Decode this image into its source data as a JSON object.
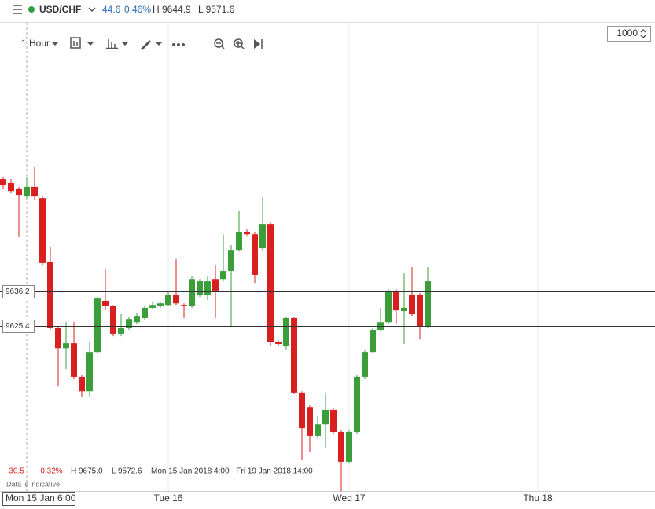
{
  "header": {
    "symbol": "USD/CHF",
    "change": "44.6",
    "change_pct": "0.46%",
    "high": "H 9644.9",
    "low": "L 9571.6"
  },
  "toolbar": {
    "interval": "1 Hour",
    "zoom": "1000"
  },
  "footer": {
    "change": "-30.5",
    "change_pct": "-0.32%",
    "high": "H 9675.0",
    "low": "L 9572.6",
    "range": "Mon 15 Jan 2018 4:00 - Fri 19 Jan 2018 14:00",
    "note": "Data is indicative"
  },
  "chart_data": {
    "type": "candlestick",
    "categories": [
      null,
      null,
      null,
      "Mon 15 Jan 6:00",
      null,
      null,
      null,
      null,
      null,
      null,
      null,
      null,
      null,
      null,
      null,
      null,
      null,
      null,
      null,
      null,
      null,
      "Tue 16",
      null,
      null,
      null,
      null,
      null,
      null,
      null,
      null,
      null,
      null,
      null,
      null,
      null,
      null,
      null,
      null,
      null,
      null,
      null,
      null,
      null,
      null,
      "Wed 17",
      null,
      null,
      null,
      null,
      null,
      null,
      null,
      null,
      null,
      null,
      null,
      null,
      null,
      null,
      null,
      null,
      null,
      null,
      null,
      null,
      null,
      null,
      null,
      "Thu 18",
      null
    ],
    "open": [
      9671.3,
      9670.1,
      9668.4,
      9665.9,
      9668.9,
      9665.4,
      9645.5,
      9624.7,
      9618.5,
      9620.0,
      9609.5,
      9605.0,
      9617.3,
      9633.3,
      9631.6,
      9623.0,
      9624.7,
      9626.6,
      9627.9,
      9631.1,
      9631.6,
      9632.0,
      9635.0,
      9632.0,
      9631.6,
      9635.2,
      9635.0,
      9640.1,
      9640.1,
      9642.6,
      9649.2,
      9654.9,
      9654.1,
      9649.7,
      9657.3,
      9620.5,
      9619.3,
      9627.9,
      9604.6,
      9600.1,
      9591.1,
      9594.7,
      9599.2,
      9592.3,
      9583.0,
      9592.3,
      9609.5,
      9617.3,
      9624.2,
      9626.6,
      9636.5,
      9630.1,
      9635.2,
      9635.2,
      9625.4,
      null,
      null,
      null,
      null,
      null,
      null,
      null,
      null,
      null,
      null,
      null,
      null,
      null,
      null,
      null
    ],
    "high": [
      9672.1,
      9671.3,
      9668.9,
      9672.1,
      9675.0,
      9665.9,
      9650.0,
      9625.4,
      9626.6,
      9626.6,
      9610.0,
      9620.5,
      9634.5,
      9643.1,
      9632.0,
      9629.1,
      9628.4,
      9629.6,
      9631.6,
      9632.8,
      9633.0,
      9636.0,
      9646.3,
      9632.5,
      9640.9,
      9640.1,
      9640.9,
      9644.3,
      9654.1,
      9650.7,
      9661.5,
      9655.6,
      9654.9,
      9665.7,
      9657.8,
      9621.0,
      9628.4,
      9628.4,
      9605.0,
      9600.6,
      9597.2,
      9604.6,
      9599.6,
      9592.8,
      9592.8,
      9610.0,
      9617.8,
      9624.7,
      9631.1,
      9637.0,
      9637.0,
      9641.9,
      9643.8,
      9635.7,
      9643.8,
      null,
      null,
      null,
      null,
      null,
      null,
      null,
      null,
      null,
      null,
      null,
      null,
      null,
      null,
      null
    ],
    "low": [
      9668.4,
      9666.9,
      9653.2,
      9665.4,
      9664.7,
      9644.3,
      9624.2,
      9606.5,
      9611.9,
      9609.0,
      9603.3,
      9603.3,
      9616.8,
      9630.3,
      9622.2,
      9622.2,
      9624.2,
      9626.2,
      9627.4,
      9630.6,
      9631.1,
      9631.6,
      9632.0,
      9627.9,
      9631.1,
      9634.5,
      9633.5,
      9627.9,
      9639.4,
      9625.4,
      9648.7,
      9653.7,
      9638.9,
      9648.7,
      9619.3,
      9619.3,
      9618.1,
      9604.1,
      9583.7,
      9586.1,
      9590.6,
      9587.4,
      9591.8,
      9573.9,
      9582.5,
      9591.8,
      9609.0,
      9616.8,
      9623.7,
      9626.2,
      9626.2,
      9619.8,
      9628.6,
      9621.2,
      9624.7,
      null,
      null,
      null,
      null,
      null,
      null,
      null,
      null,
      null,
      null,
      null,
      null,
      null,
      null,
      null
    ],
    "close": [
      9669.6,
      9667.6,
      9666.4,
      9668.9,
      9665.9,
      9645.1,
      9624.7,
      9618.5,
      9620.0,
      9609.5,
      9605.0,
      9617.3,
      9634.0,
      9631.6,
      9623.0,
      9624.7,
      9627.6,
      9628.6,
      9631.1,
      9632.0,
      9632.5,
      9635.0,
      9632.5,
      9631.6,
      9640.1,
      9639.4,
      9639.4,
      9636.5,
      9642.6,
      9649.2,
      9654.9,
      9654.1,
      9641.4,
      9657.3,
      9620.5,
      9619.8,
      9627.9,
      9604.6,
      9593.5,
      9591.1,
      9594.7,
      9599.2,
      9592.3,
      9583.0,
      9592.3,
      9609.5,
      9617.3,
      9624.2,
      9626.6,
      9636.5,
      9630.3,
      9631.1,
      9629.1,
      9625.4,
      9639.4,
      null,
      null,
      null,
      null,
      null,
      null,
      null,
      null,
      null,
      null,
      null,
      null,
      null,
      null,
      null
    ],
    "up_color": "#3b9e3b",
    "down_color": "#d91f1f",
    "ylim": [
      9573.9,
      9710.1
    ],
    "price_lines": [
      9636.2,
      9625.4
    ]
  }
}
